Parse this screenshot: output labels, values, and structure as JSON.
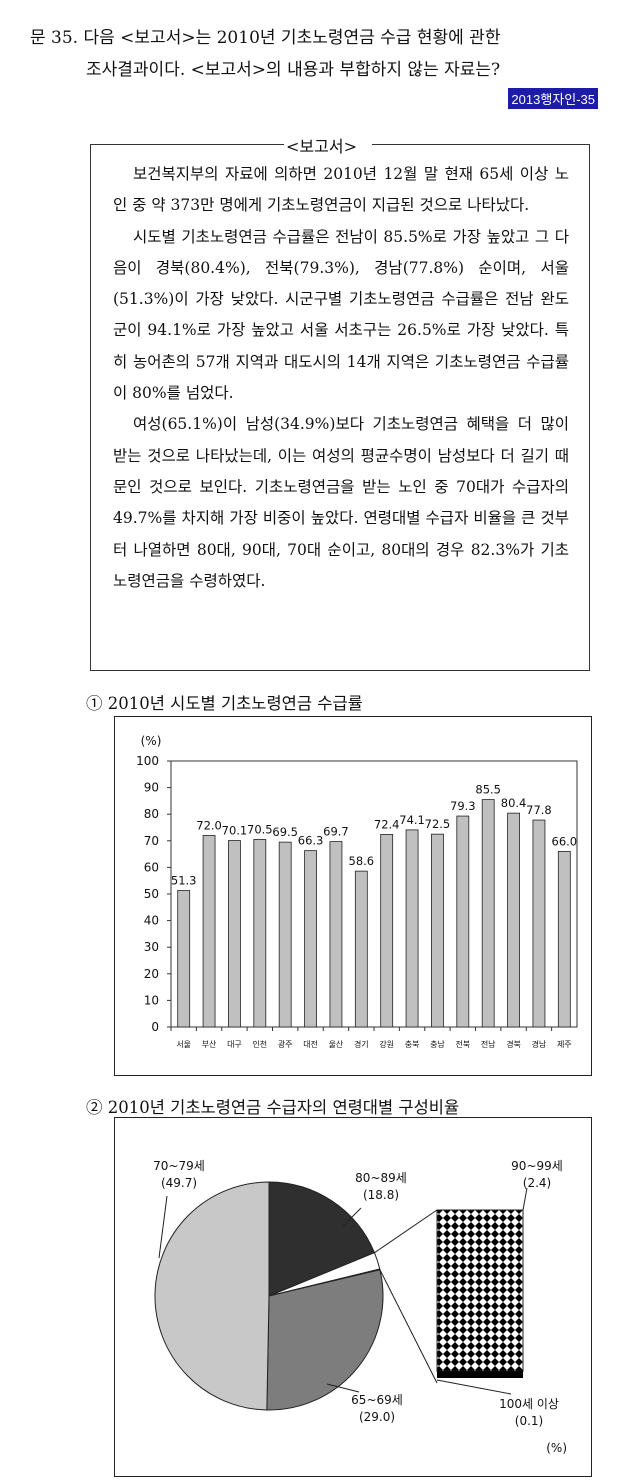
{
  "question": {
    "line1": "문 35. 다음 <보고서>는 2010년 기초노령연금 수급 현황에 관한",
    "line2": "조사결과이다. <보고서>의 내용과 부합하지 않는 자료는?",
    "source_tag": "2013행자인-35"
  },
  "report": {
    "title": "<보고서>",
    "paragraphs": [
      "보건복지부의 자료에 의하면 2010년 12월 말 현재 65세 이상 노인 중 약 373만 명에게 기초노령연금이 지급된 것으로 나타났다.",
      "시도별 기초노령연금 수급률은 전남이 85.5%로 가장 높았고 그 다음이 경북(80.4%), 전북(79.3%), 경남(77.8%) 순이며, 서울(51.3%)이 가장 낮았다. 시군구별 기초노령연금 수급률은 전남 완도군이 94.1%로 가장 높았고 서울 서초구는 26.5%로 가장 낮았다. 특히 농어촌의 57개 지역과 대도시의 14개 지역은 기초노령연금 수급률이 80%를 넘었다.",
      "여성(65.1%)이 남성(34.9%)보다 기초노령연금 혜택을 더 많이 받는 것으로 나타났는데, 이는 여성의 평균수명이 남성보다 더 길기 때문인 것으로 보인다. 기초노령연금을 받는 노인 중 70대가 수급자의 49.7%를 차지해 가장 비중이 높았다. 연령대별 수급자 비율을 큰 것부터 나열하면 80대, 90대, 70대 순이고, 80대의 경우 82.3%가 기초노령연금을 수령하였다."
    ]
  },
  "chart1_title": "① 2010년 시도별 기초노령연금 수급률",
  "chart2_title": "② 2010년 기초노령연금 수급자의 연령대별 구성비율",
  "chart_data": [
    {
      "type": "bar",
      "title": "2010년 시도별 기초노령연금 수급률",
      "ylabel": "(%)",
      "ylim": [
        0,
        100
      ],
      "yticks": [
        0,
        10,
        20,
        30,
        40,
        50,
        60,
        70,
        80,
        90,
        100
      ],
      "grid": false,
      "bar_color": "#c0c0c0",
      "categories": [
        "서울",
        "부산",
        "대구",
        "인천",
        "광주",
        "대전",
        "울산",
        "경기",
        "강원",
        "충북",
        "충남",
        "전북",
        "전남",
        "경북",
        "경남",
        "제주"
      ],
      "values": [
        51.3,
        72.0,
        70.1,
        70.5,
        69.5,
        66.3,
        69.7,
        58.6,
        72.4,
        74.1,
        72.5,
        79.3,
        85.5,
        80.4,
        77.8,
        66.0
      ]
    },
    {
      "type": "pie",
      "title": "2010년 기초노령연금 수급자의 연령대별 구성비율",
      "unit": "(%)",
      "slices": [
        {
          "label": "80~89세",
          "value": 18.8,
          "color": "#2f2f2f"
        },
        {
          "label": "90~99세",
          "value": 2.4,
          "color": "#ffffff"
        },
        {
          "label": "100세 이상",
          "value": 0.1,
          "color": "#000000"
        },
        {
          "label": "65~69세",
          "value": 29.0,
          "color": "#7d7d7d"
        },
        {
          "label": "70~79세",
          "value": 49.7,
          "color": "#c8c8c8"
        }
      ],
      "value_labels": [
        "(18.8)",
        "(2.4)",
        "(0.1)",
        "(29.0)",
        "(49.7)"
      ]
    }
  ]
}
